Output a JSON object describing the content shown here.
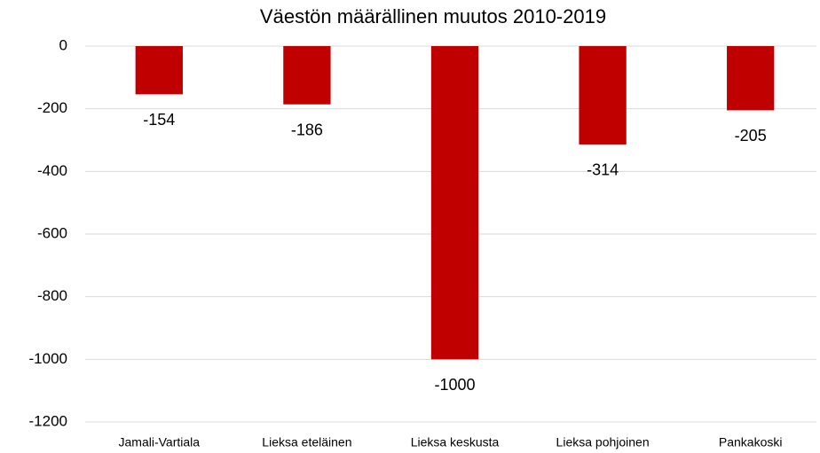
{
  "chart_data": {
    "type": "bar",
    "title": "Väestön määrällinen muutos 2010-2019",
    "categories": [
      "Jamali-Vartiala",
      "Lieksa eteläinen",
      "Lieksa keskusta",
      "Lieksa pohjoinen",
      "Pankakoski"
    ],
    "values": [
      -154,
      -186,
      -1000,
      -314,
      -205
    ],
    "color": "#c00000",
    "ylim": [
      -1200,
      0
    ],
    "yticks": [
      0,
      -200,
      -400,
      -600,
      -800,
      -1000,
      -1200
    ],
    "grid": true
  }
}
